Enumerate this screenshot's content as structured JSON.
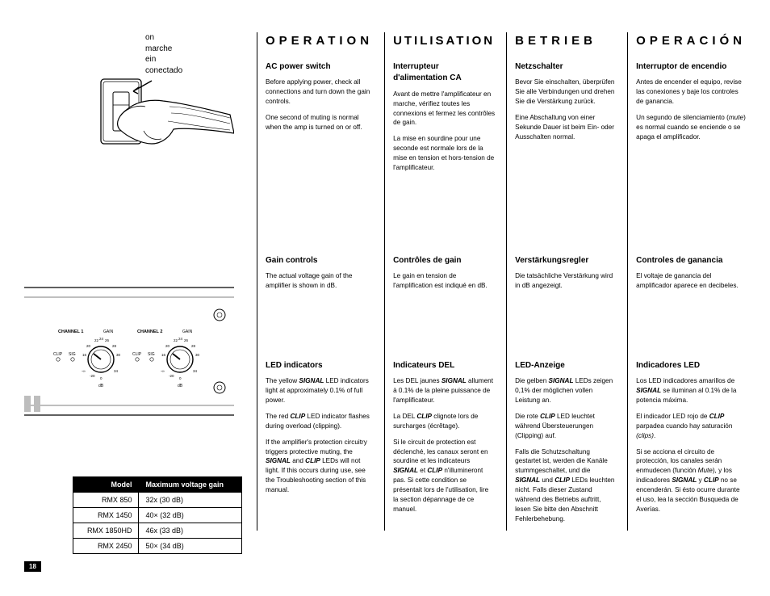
{
  "page_number": "18",
  "left": {
    "on_labels": [
      "on",
      "marche",
      "ein",
      "conectado"
    ],
    "panel": {
      "ch1": "CHANNEL 1",
      "ch2": "CHANNEL 2",
      "gain": "GAIN",
      "clip": "CLIP",
      "sig": "SIG",
      "db": "dB",
      "ticks_top": [
        "22",
        "24",
        "26"
      ],
      "ticks_mid": [
        "20",
        "28"
      ],
      "ticks_lo": [
        "16",
        "30"
      ],
      "ticks_bot": [
        "-∞",
        "-20",
        "0",
        "34"
      ]
    },
    "table": {
      "headers": [
        "Model",
        "Maximum voltage gain"
      ],
      "rows": [
        [
          "RMX 850",
          "32x (30 dB)"
        ],
        [
          "RMX 1450",
          "40× (32 dB)"
        ],
        [
          "RMX 1850HD",
          "46x (33 dB)"
        ],
        [
          "RMX 2450",
          "50× (34 dB)"
        ]
      ]
    }
  },
  "cols": [
    {
      "title": "OPERATION",
      "s1_h": "AC power switch",
      "s1_p": [
        "Before applying power, check all connections and turn down the gain controls.",
        "One second of muting is normal when the amp is turned on or off."
      ],
      "s2_h": "Gain controls",
      "s2_p": [
        "The actual voltage gain of the amplifier is shown in dB."
      ],
      "s3_h": "LED indicators",
      "s3_p": [
        "The yellow <b>SIGNAL</b> LED indicators light at approximately 0.1% of full power.",
        "The red <b>CLIP</b> LED indicator flashes during overload (clipping).",
        "If the amplifier's protection circuitry triggers protective muting, the <b>SIGNAL</b> and <b>CLIP</b> LEDs will not light. If this occurs during use, see the Troubleshooting section of this manual."
      ]
    },
    {
      "title": "UTILISATION",
      "s1_h": "Interrupteur d'alimentation CA",
      "s1_p": [
        "Avant de mettre l'amplificateur en marche, vérifiez toutes les connexions et fermez les contrôles de gain.",
        "La mise en sourdine pour une seconde est normale lors de la mise en tension et hors-tension de l'amplificateur."
      ],
      "s2_h": "Contrôles de gain",
      "s2_p": [
        "Le gain en tension de l'amplification est indiqué en dB."
      ],
      "s3_h": "Indicateurs DEL",
      "s3_p": [
        "Les DEL jaunes <b>SIGNAL</b> allument à 0.1% de la pleine puissance de l'amplificateur.",
        "La DEL <b>CLIP</b> clignote lors de surcharges (écrêtage).",
        "Si le circuit de protection est déclenché, les canaux seront en sourdine et les indicateurs <b>SIGNAL</b> et <b>CLIP</b> n'illumineront pas. Si cette condition se présentait lors de l'utilisation, lire la section dépannage de ce manuel."
      ]
    },
    {
      "title": "BETRIEB",
      "s1_h": "Netzschalter",
      "s1_p": [
        "Bevor Sie einschalten, überprüfen Sie alle Verbindungen und drehen Sie die Verstärkung zurück.",
        "Eine Abschaltung von einer Sekunde Dauer ist beim Ein- oder Ausschalten normal."
      ],
      "s2_h": "Verstärkungsregler",
      "s2_p": [
        "Die tatsächliche Verstärkung wird in dB angezeigt."
      ],
      "s3_h": "LED-Anzeige",
      "s3_p": [
        "Die gelben <b>SIGNAL</b> LEDs zeigen 0,1% der möglichen vollen Leistung an.",
        "Die rote <b>CLIP</b> LED leuchtet während Übersteuerungen (Clipping) auf.",
        "Falls die Schutzschaltung gestartet ist, werden die Kanäle stummgeschaltet, und die <b>SIGNAL</b> und <b>CLIP</b> LEDs leuchten nicht. Falls dieser Zustand während des Betriebs auftritt, lesen Sie bitte den Abschnitt Fehlerbehebung."
      ]
    },
    {
      "title": "OPERACIÓN",
      "s1_h": "Interruptor de encendio",
      "s1_p": [
        "Antes de encender el equipo, revise las conexiones y baje los controles de ganancia.",
        "Un segundo de silenciamiento (<i>mute</i>) es normal cuando se enciende o se apaga el amplificador."
      ],
      "s2_h": "Controles de ganancia",
      "s2_p": [
        "El voltaje de ganancia del amplificador aparece en decibeles."
      ],
      "s3_h": "Indicadores LED",
      "s3_p": [
        "Los LED indicadores amarillos de <b>SIGNAL</b> se iluminan al 0.1% de la potencia máxima.",
        "El indicador LED rojo de <b>CLIP</b> parpadea cuando hay saturación <i>(clips)</i>.",
        "Si se acciona el circuito de protección, los canales serán enmudecen (función <i>Mute</i>), y los indicadores <b>SIGNAL</b> y <b>CLIP</b> no se encenderán. Si ésto ocurre durante el uso, lea la sección Busqueda de Averías."
      ]
    }
  ]
}
